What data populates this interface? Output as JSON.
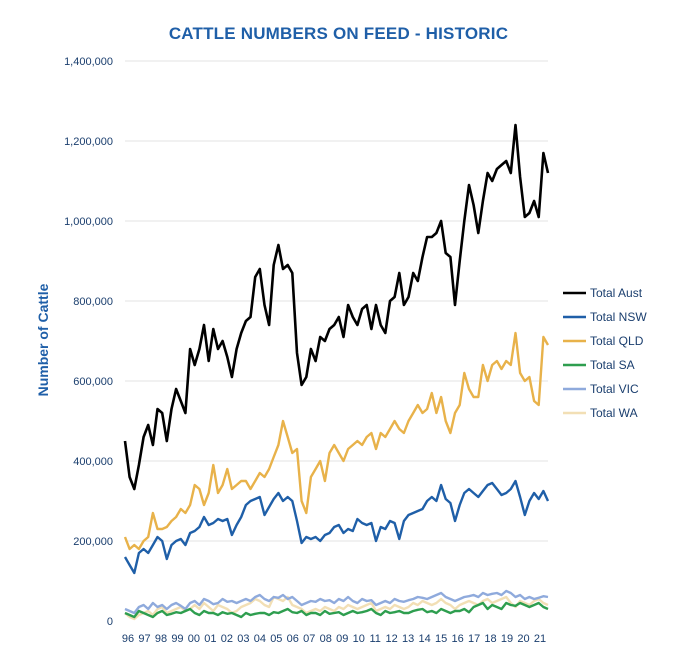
{
  "chart_data": {
    "type": "line",
    "title": "CATTLE NUMBERS ON FEED - HISTORIC",
    "ylabel": "Number of Cattle",
    "xlabel": "",
    "ylim": [
      0,
      1400000
    ],
    "yticks": [
      "0",
      "200,000",
      "400,000",
      "600,000",
      "800,000",
      "1,000,000",
      "1,200,000",
      "1,400,000"
    ],
    "xticks": [
      "96",
      "97",
      "98",
      "99",
      "00",
      "01",
      "02",
      "03",
      "04",
      "05",
      "06",
      "07",
      "08",
      "09",
      "10",
      "11",
      "12",
      "13",
      "14",
      "15",
      "16",
      "17",
      "18",
      "19",
      "20",
      "21"
    ],
    "grid": true,
    "legend_position": "right",
    "series": [
      {
        "name": "Total Aust",
        "color": "#000000",
        "values": [
          450000,
          360000,
          330000,
          390000,
          460000,
          490000,
          440000,
          530000,
          520000,
          450000,
          530000,
          580000,
          550000,
          520000,
          680000,
          640000,
          680000,
          740000,
          650000,
          730000,
          680000,
          700000,
          660000,
          610000,
          680000,
          720000,
          750000,
          760000,
          860000,
          880000,
          790000,
          740000,
          890000,
          940000,
          880000,
          890000,
          870000,
          670000,
          590000,
          610000,
          680000,
          650000,
          710000,
          700000,
          730000,
          740000,
          760000,
          710000,
          790000,
          760000,
          740000,
          780000,
          790000,
          730000,
          790000,
          740000,
          720000,
          800000,
          810000,
          870000,
          790000,
          810000,
          870000,
          850000,
          910000,
          960000,
          960000,
          970000,
          1000000,
          920000,
          910000,
          790000,
          900000,
          1000000,
          1090000,
          1040000,
          970000,
          1050000,
          1120000,
          1100000,
          1130000,
          1140000,
          1150000,
          1120000,
          1240000,
          1110000,
          1010000,
          1020000,
          1050000,
          1010000,
          1170000,
          1120000
        ]
      },
      {
        "name": "Total NSW",
        "color": "#1f5fa8",
        "values": [
          160000,
          140000,
          120000,
          170000,
          180000,
          170000,
          190000,
          210000,
          200000,
          155000,
          190000,
          200000,
          205000,
          190000,
          220000,
          225000,
          235000,
          260000,
          240000,
          245000,
          255000,
          250000,
          255000,
          215000,
          240000,
          260000,
          290000,
          300000,
          305000,
          310000,
          265000,
          285000,
          305000,
          320000,
          300000,
          310000,
          300000,
          250000,
          195000,
          210000,
          205000,
          210000,
          200000,
          215000,
          220000,
          235000,
          240000,
          220000,
          230000,
          225000,
          255000,
          245000,
          240000,
          245000,
          200000,
          235000,
          230000,
          250000,
          245000,
          205000,
          250000,
          265000,
          270000,
          275000,
          280000,
          300000,
          310000,
          300000,
          340000,
          305000,
          295000,
          250000,
          290000,
          320000,
          330000,
          320000,
          310000,
          325000,
          340000,
          345000,
          330000,
          315000,
          320000,
          330000,
          350000,
          310000,
          265000,
          300000,
          320000,
          305000,
          325000,
          300000
        ]
      },
      {
        "name": "Total QLD",
        "color": "#e8b24a",
        "values": [
          210000,
          180000,
          190000,
          180000,
          200000,
          210000,
          270000,
          230000,
          230000,
          235000,
          250000,
          260000,
          280000,
          270000,
          290000,
          340000,
          330000,
          290000,
          320000,
          390000,
          320000,
          340000,
          380000,
          330000,
          340000,
          350000,
          350000,
          330000,
          350000,
          370000,
          360000,
          380000,
          410000,
          440000,
          500000,
          460000,
          420000,
          430000,
          300000,
          270000,
          360000,
          380000,
          400000,
          350000,
          420000,
          440000,
          420000,
          400000,
          430000,
          440000,
          450000,
          440000,
          460000,
          470000,
          430000,
          470000,
          460000,
          480000,
          500000,
          480000,
          470000,
          500000,
          520000,
          540000,
          520000,
          530000,
          570000,
          520000,
          560000,
          500000,
          470000,
          520000,
          540000,
          620000,
          580000,
          560000,
          560000,
          640000,
          600000,
          640000,
          650000,
          630000,
          650000,
          640000,
          720000,
          620000,
          600000,
          610000,
          550000,
          540000,
          710000,
          690000
        ]
      },
      {
        "name": "Total SA",
        "color": "#2e9e4f",
        "values": [
          20000,
          15000,
          10000,
          25000,
          20000,
          15000,
          10000,
          20000,
          25000,
          15000,
          18000,
          22000,
          20000,
          25000,
          30000,
          20000,
          15000,
          25000,
          20000,
          20000,
          15000,
          22000,
          18000,
          20000,
          15000,
          10000,
          20000,
          15000,
          18000,
          20000,
          20000,
          15000,
          22000,
          20000,
          25000,
          30000,
          22000,
          20000,
          25000,
          15000,
          20000,
          20000,
          15000,
          25000,
          18000,
          20000,
          22000,
          15000,
          20000,
          25000,
          20000,
          22000,
          25000,
          30000,
          20000,
          15000,
          25000,
          20000,
          22000,
          25000,
          20000,
          20000,
          25000,
          28000,
          30000,
          22000,
          25000,
          20000,
          30000,
          25000,
          20000,
          25000,
          25000,
          30000,
          22000,
          35000,
          40000,
          45000,
          30000,
          40000,
          35000,
          30000,
          45000,
          40000,
          38000,
          45000,
          40000,
          35000,
          40000,
          45000,
          35000,
          30000
        ]
      },
      {
        "name": "Total VIC",
        "color": "#8faadc",
        "values": [
          30000,
          25000,
          20000,
          35000,
          40000,
          30000,
          45000,
          35000,
          40000,
          30000,
          40000,
          45000,
          38000,
          30000,
          45000,
          50000,
          40000,
          55000,
          50000,
          42000,
          45000,
          55000,
          48000,
          50000,
          45000,
          50000,
          55000,
          50000,
          60000,
          65000,
          55000,
          50000,
          60000,
          58000,
          65000,
          55000,
          60000,
          50000,
          40000,
          45000,
          50000,
          48000,
          55000,
          50000,
          52000,
          45000,
          55000,
          50000,
          60000,
          50000,
          45000,
          55000,
          50000,
          52000,
          40000,
          45000,
          50000,
          45000,
          55000,
          50000,
          48000,
          52000,
          55000,
          60000,
          58000,
          55000,
          60000,
          65000,
          70000,
          60000,
          55000,
          50000,
          55000,
          60000,
          62000,
          65000,
          60000,
          70000,
          65000,
          68000,
          70000,
          65000,
          75000,
          70000,
          60000,
          65000,
          55000,
          60000,
          55000,
          58000,
          62000,
          60000
        ]
      },
      {
        "name": "Total WA",
        "color": "#f2dfb5",
        "values": [
          20000,
          10000,
          5000,
          15000,
          20000,
          25000,
          15000,
          30000,
          35000,
          20000,
          25000,
          30000,
          35000,
          25000,
          30000,
          40000,
          30000,
          45000,
          35000,
          25000,
          40000,
          35000,
          30000,
          20000,
          25000,
          35000,
          40000,
          45000,
          55000,
          50000,
          40000,
          35000,
          60000,
          55000,
          50000,
          60000,
          40000,
          35000,
          30000,
          20000,
          25000,
          30000,
          25000,
          35000,
          30000,
          25000,
          35000,
          30000,
          40000,
          35000,
          30000,
          35000,
          40000,
          45000,
          25000,
          30000,
          35000,
          30000,
          40000,
          35000,
          30000,
          35000,
          45000,
          40000,
          50000,
          45000,
          40000,
          45000,
          55000,
          45000,
          40000,
          30000,
          40000,
          45000,
          50000,
          45000,
          40000,
          50000,
          55000,
          45000,
          50000,
          55000,
          60000,
          45000,
          35000,
          50000,
          45000,
          40000,
          50000,
          55000,
          45000,
          40000
        ]
      }
    ]
  }
}
